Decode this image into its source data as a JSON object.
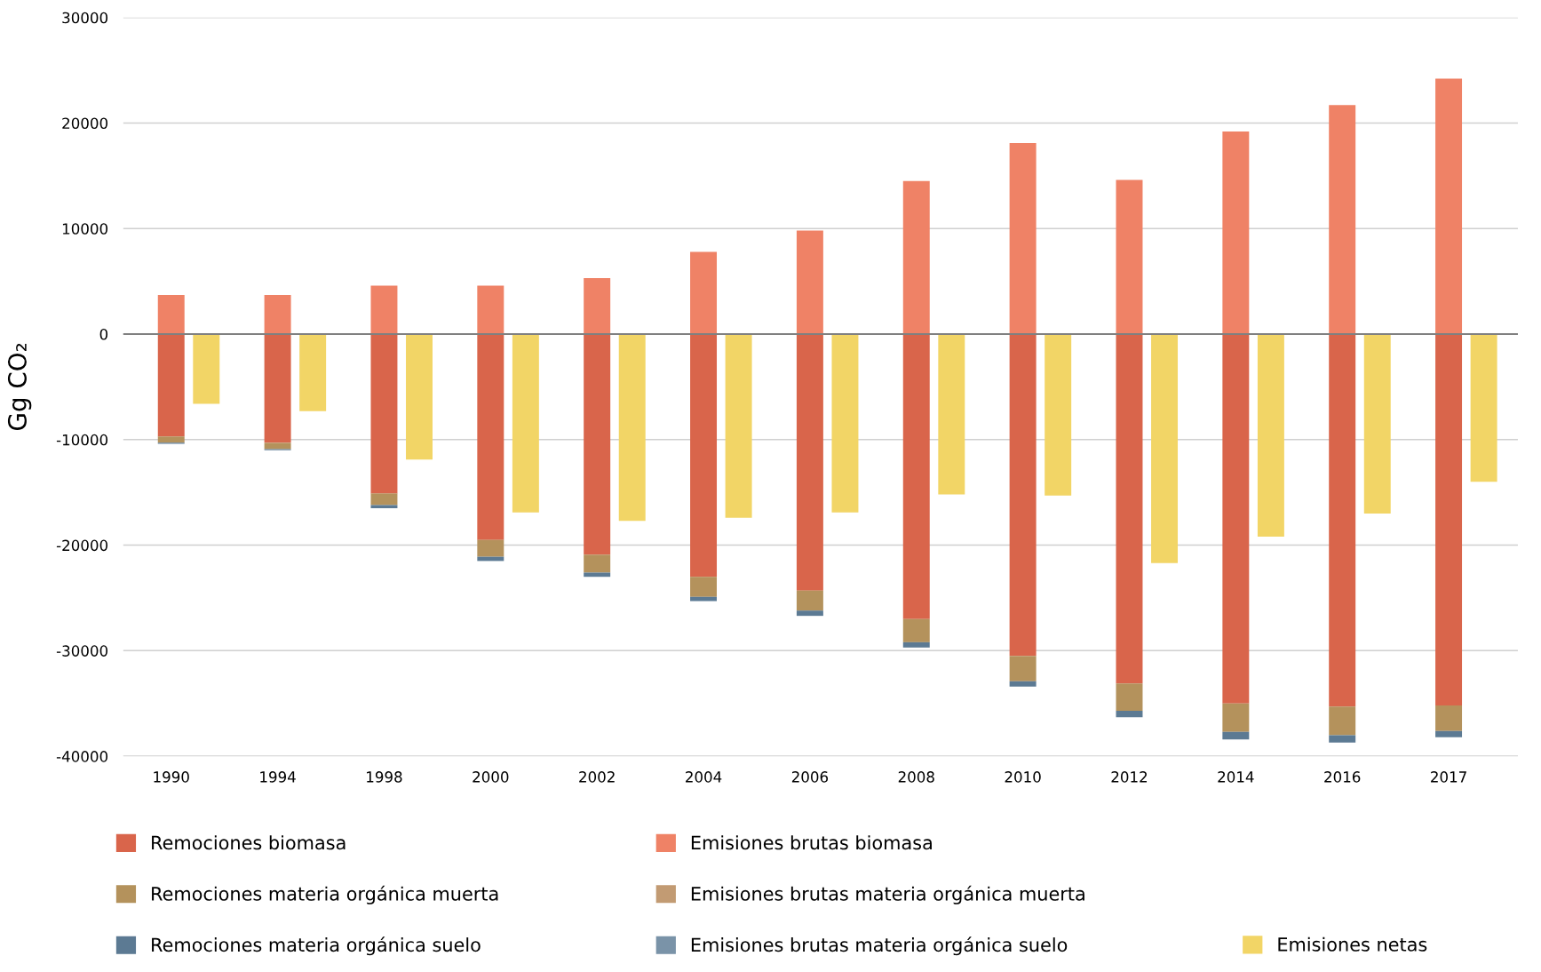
{
  "chart_data": {
    "type": "bar",
    "ylabel": "Gg CO₂",
    "categories": [
      "1990",
      "1994",
      "1998",
      "2000",
      "2002",
      "2004",
      "2006",
      "2008",
      "2010",
      "2012",
      "2014",
      "2016",
      "2017"
    ],
    "series": [
      {
        "name": "Remociones biomasa",
        "color": "#d9654b",
        "values": [
          -9700,
          -10300,
          -15100,
          -19500,
          -20900,
          -23000,
          -24300,
          -27000,
          -30500,
          -33100,
          -35000,
          -35300,
          -35200
        ],
        "base": [
          0,
          0,
          0,
          0,
          0,
          0,
          0,
          0,
          0,
          0,
          0,
          0,
          0
        ]
      },
      {
        "name": "Emisiones brutas biomasa",
        "color": "#ef8266",
        "values": [
          3700,
          3700,
          4600,
          4600,
          5300,
          7800,
          9800,
          14500,
          18100,
          14600,
          19200,
          21700,
          24200
        ],
        "base": [
          0,
          0,
          0,
          0,
          0,
          0,
          0,
          0,
          0,
          0,
          0,
          0,
          0
        ]
      },
      {
        "name": "Remociones materia orgánica muerta",
        "color": "#b4925c",
        "values": [
          -600,
          -600,
          -1100,
          -1600,
          -1700,
          -1900,
          -1900,
          -2200,
          -2400,
          -2600,
          -2700,
          -2700,
          -2400
        ],
        "base": [
          -9700,
          -10300,
          -15100,
          -19500,
          -20900,
          -23000,
          -24300,
          -27000,
          -30500,
          -33100,
          -35000,
          -35300,
          -35200
        ]
      },
      {
        "name": "Emisiones brutas materia orgánica muerta",
        "color": "#c29b73",
        "values": [
          null,
          null,
          null,
          null,
          null,
          null,
          null,
          null,
          null,
          null,
          null,
          null,
          null
        ],
        "base": [
          null,
          null,
          null,
          null,
          null,
          null,
          null,
          null,
          null,
          null,
          null,
          null,
          null
        ]
      },
      {
        "name": "Remociones materia orgánica suelo",
        "color": "#5c7a93",
        "values": [
          -100,
          -100,
          -300,
          -400,
          -400,
          -400,
          -500,
          -500,
          -500,
          -600,
          -700,
          -700,
          -600
        ],
        "base": [
          -10300,
          -10900,
          -16200,
          -21100,
          -22600,
          -24900,
          -26200,
          -29200,
          -32900,
          -35700,
          -37700,
          -38000,
          -37600
        ]
      },
      {
        "name": "Emisiones brutas materia orgánica suelo",
        "color": "#7a93a8",
        "values": [
          null,
          null,
          null,
          null,
          null,
          null,
          null,
          null,
          null,
          null,
          null,
          null,
          null
        ],
        "base": [
          null,
          null,
          null,
          null,
          null,
          null,
          null,
          null,
          null,
          null,
          null,
          null,
          null
        ]
      },
      {
        "name": "Emisiones netas",
        "color": "#f2d566",
        "values": [
          -6600,
          -7300,
          -11900,
          -16900,
          -17700,
          -17400,
          -16900,
          -15200,
          -15300,
          -21700,
          -19200,
          -17000,
          -14000
        ]
      }
    ],
    "ylim": [
      -40000,
      30000
    ],
    "yticks": [
      -40000,
      -30000,
      -20000,
      -10000,
      0,
      10000,
      20000,
      30000
    ],
    "grid": "y",
    "legend": "bottom",
    "ref_lines": [
      {
        "axis": "y",
        "value": 0,
        "color": "#808080"
      }
    ]
  }
}
